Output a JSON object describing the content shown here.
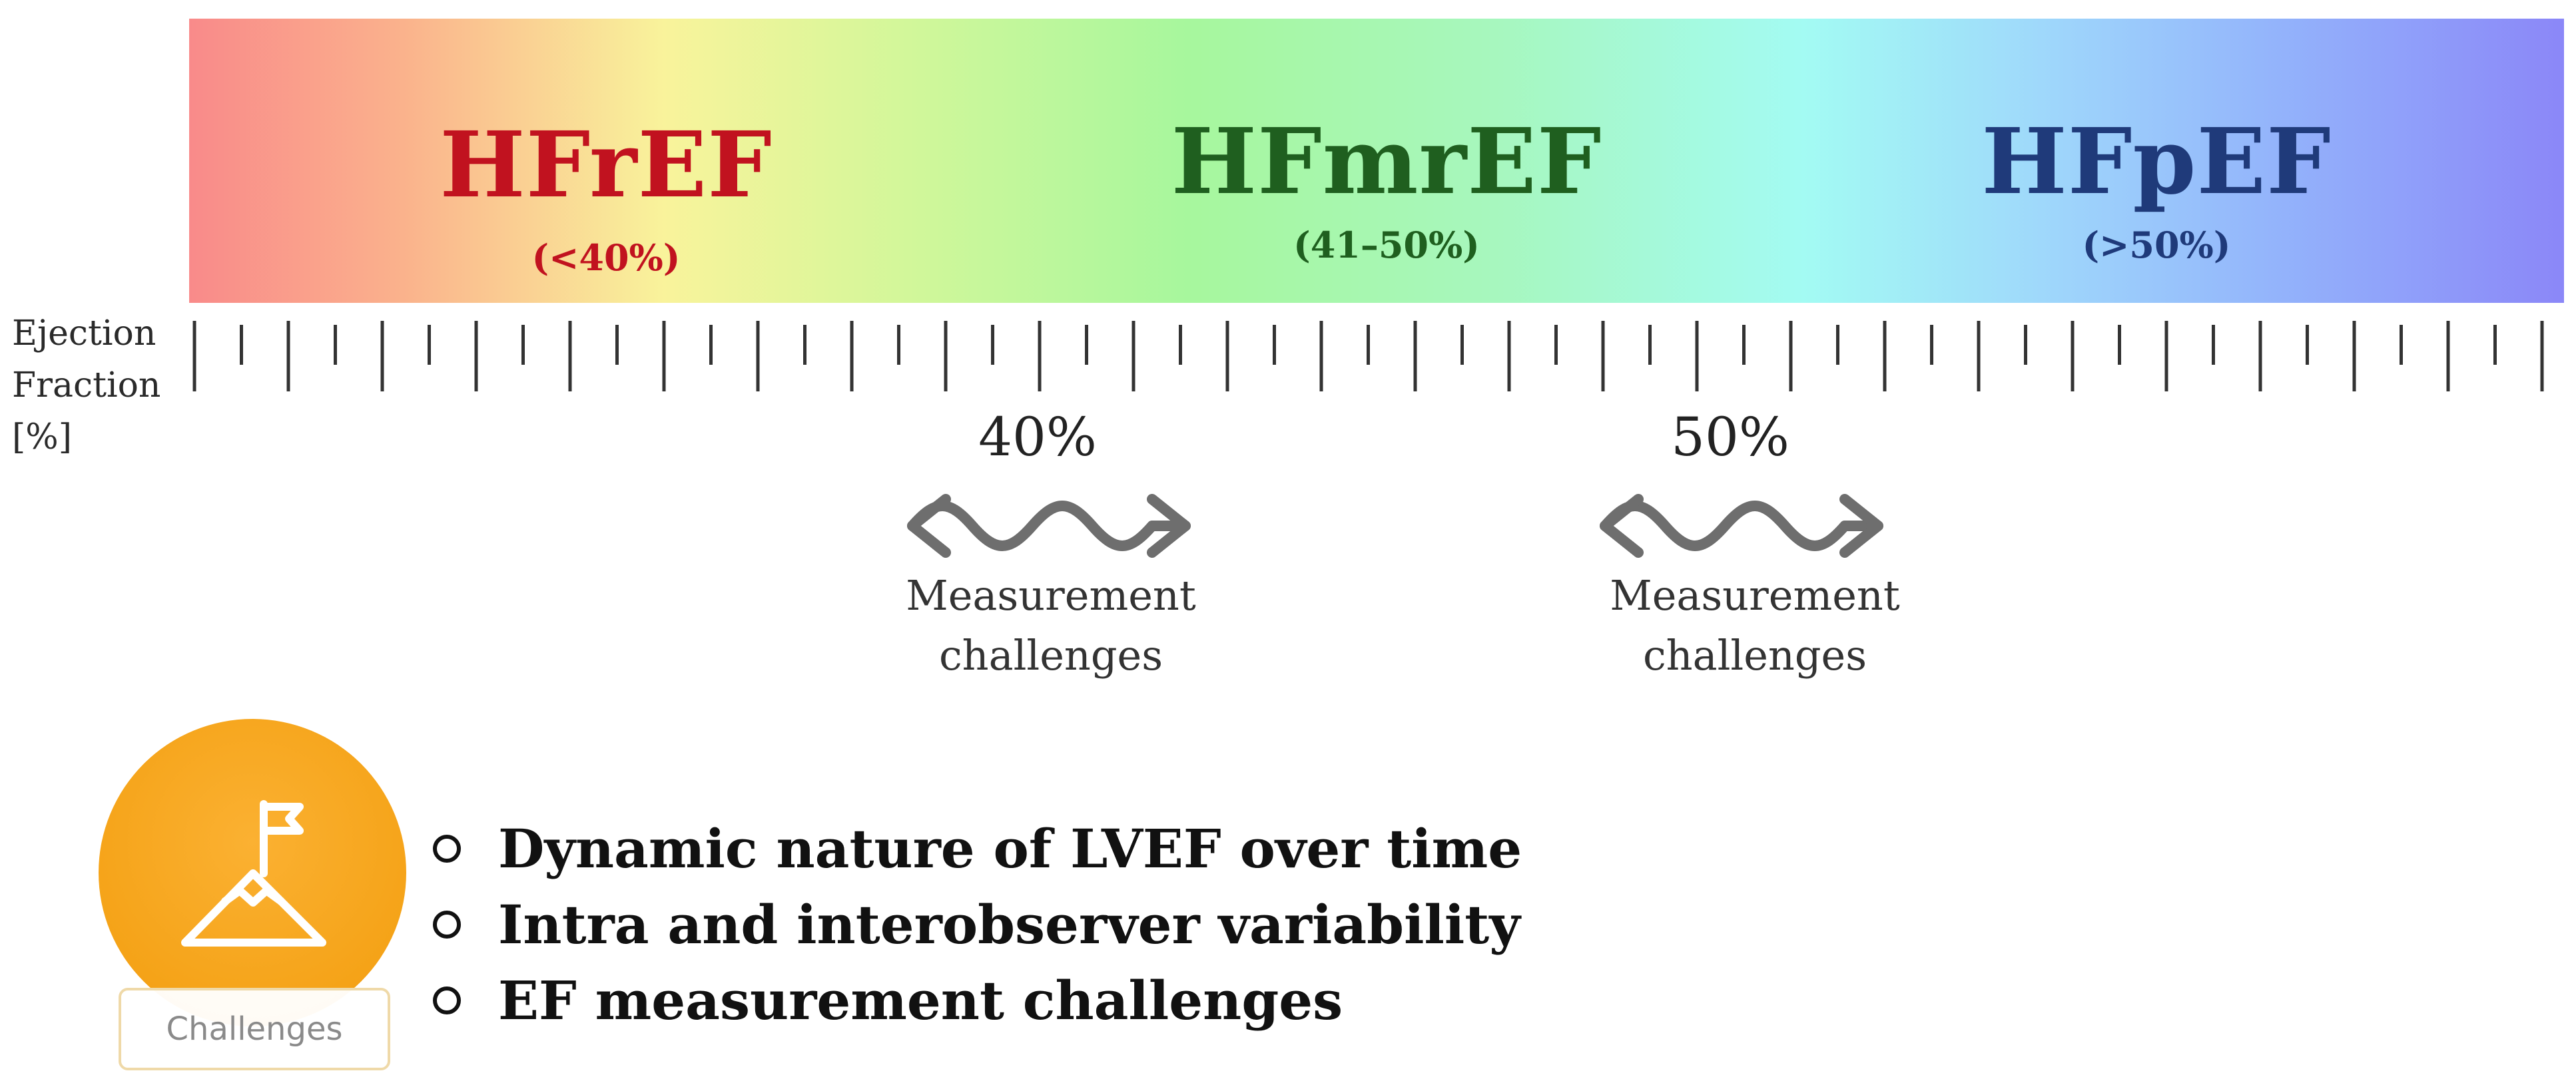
{
  "categories": [
    {
      "name": "HFrEF",
      "range": "(<40%)",
      "color": "#c1121f"
    },
    {
      "name": "HFmrEF",
      "range": "(41–50%)",
      "color": "#1f5f1f"
    },
    {
      "name": "HFpEF",
      "range": "(>50%)",
      "color": "#1f3a7a"
    }
  ],
  "axis": {
    "label_line1": "Ejection",
    "label_line2": "Fraction",
    "label_line3": "[%]"
  },
  "thresholds": [
    {
      "value": "40%",
      "caption_line1": "Measurement",
      "caption_line2": "challenges"
    },
    {
      "value": "50%",
      "caption_line1": "Measurement",
      "caption_line2": "challenges"
    }
  ],
  "challenges": {
    "badge_label": "Challenges",
    "badge_color": "#f5a318",
    "icon": "mountain-flag-icon",
    "items": [
      "Dynamic nature of LVEF over time",
      "Intra and interobserver variability",
      "EF measurement challenges"
    ]
  }
}
